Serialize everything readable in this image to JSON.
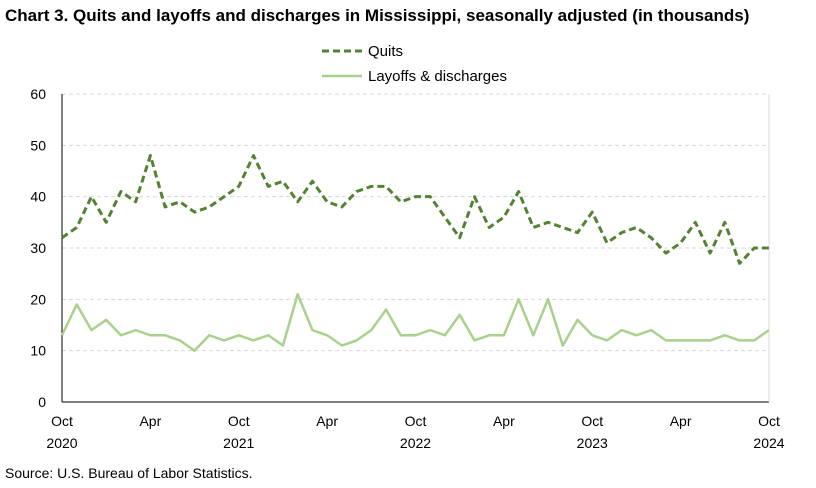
{
  "title": "Chart 3. Quits and layoffs and discharges in Mississippi, seasonally adjusted (in thousands)",
  "source": "Source: U.S. Bureau of Labor Statistics.",
  "chart_data": {
    "type": "line",
    "title": "Chart 3. Quits and layoffs and discharges in Mississippi, seasonally adjusted (in thousands)",
    "xlabel": "",
    "ylabel": "",
    "ylim": [
      0,
      60
    ],
    "yticks": [
      0,
      10,
      20,
      30,
      40,
      50,
      60
    ],
    "grid": "horizontal dashed",
    "legend_position": "top-center",
    "x_tick_labels": [
      {
        "month": "Oct",
        "year": "2020",
        "index": 0
      },
      {
        "month": "Apr",
        "year": "",
        "index": 6
      },
      {
        "month": "Oct",
        "year": "2021",
        "index": 12
      },
      {
        "month": "Apr",
        "year": "",
        "index": 18
      },
      {
        "month": "Oct",
        "year": "2022",
        "index": 24
      },
      {
        "month": "Apr",
        "year": "",
        "index": 30
      },
      {
        "month": "Oct",
        "year": "2023",
        "index": 36
      },
      {
        "month": "Apr",
        "year": "",
        "index": 42
      },
      {
        "month": "Oct",
        "year": "2024",
        "index": 48
      }
    ],
    "x": [
      "2020-10",
      "2020-11",
      "2020-12",
      "2021-01",
      "2021-02",
      "2021-03",
      "2021-04",
      "2021-05",
      "2021-06",
      "2021-07",
      "2021-08",
      "2021-09",
      "2021-10",
      "2021-11",
      "2021-12",
      "2022-01",
      "2022-02",
      "2022-03",
      "2022-04",
      "2022-05",
      "2022-06",
      "2022-07",
      "2022-08",
      "2022-09",
      "2022-10",
      "2022-11",
      "2022-12",
      "2023-01",
      "2023-02",
      "2023-03",
      "2023-04",
      "2023-05",
      "2023-06",
      "2023-07",
      "2023-08",
      "2023-09",
      "2023-10",
      "2023-11",
      "2023-12",
      "2024-01",
      "2024-02",
      "2024-03",
      "2024-04",
      "2024-05",
      "2024-06",
      "2024-07",
      "2024-08",
      "2024-09",
      "2024-10"
    ],
    "series": [
      {
        "name": "Quits",
        "color": "#548235",
        "style": "dashed",
        "values": [
          32,
          34,
          40,
          35,
          41,
          39,
          48,
          38,
          39,
          37,
          38,
          40,
          42,
          48,
          42,
          43,
          39,
          43,
          39,
          38,
          41,
          42,
          42,
          39,
          40,
          40,
          36,
          32,
          40,
          34,
          36,
          41,
          34,
          35,
          34,
          33,
          37,
          31,
          33,
          34,
          32,
          29,
          31,
          35,
          29,
          35,
          27,
          30,
          30
        ]
      },
      {
        "name": "Layoffs & discharges",
        "color": "#a9d18e",
        "style": "solid",
        "values": [
          13,
          19,
          14,
          16,
          13,
          14,
          13,
          13,
          12,
          10,
          13,
          12,
          13,
          12,
          13,
          11,
          21,
          14,
          13,
          11,
          12,
          14,
          18,
          13,
          13,
          14,
          13,
          17,
          12,
          13,
          13,
          20,
          13,
          20,
          11,
          16,
          13,
          12,
          14,
          13,
          14,
          12,
          12,
          12,
          12,
          13,
          12,
          12,
          14
        ]
      }
    ]
  }
}
